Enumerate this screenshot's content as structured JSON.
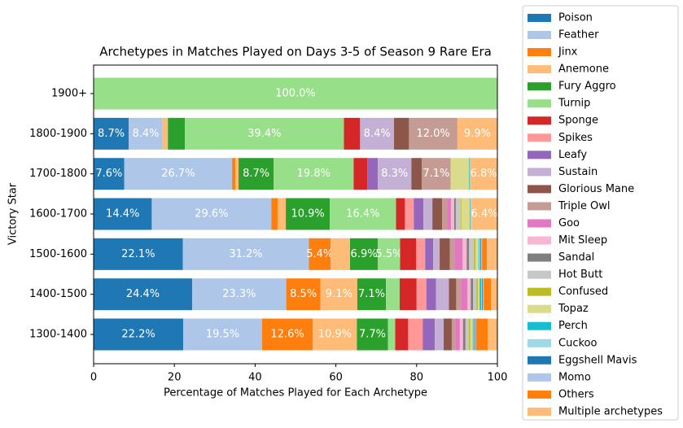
{
  "chart_data": {
    "type": "barh_stacked",
    "title": "Archetypes in Matches Played on Days 3-5 of Season 9 Rare Era",
    "xlabel": "Percentage of Matches Played for Each Archetype",
    "ylabel": "Victory Star",
    "categories": [
      "1300-1400",
      "1400-1500",
      "1500-1600",
      "1600-1700",
      "1700-1800",
      "1800-1900",
      "1900+"
    ],
    "xlim": [
      0,
      100
    ],
    "xticks": [
      0,
      20,
      40,
      60,
      80,
      100
    ],
    "series": [
      {
        "name": "Poison",
        "color": "#1f77b4",
        "values": [
          22.2,
          24.4,
          22.1,
          14.4,
          7.6,
          8.7,
          0
        ],
        "value_labels": [
          "22.2%",
          "24.4%",
          "22.1%",
          "14.4%",
          "7.6%",
          "8.7%",
          null
        ]
      },
      {
        "name": "Feather",
        "color": "#aec7e8",
        "values": [
          19.5,
          23.3,
          31.2,
          29.6,
          26.7,
          8.4,
          0
        ],
        "value_labels": [
          "19.5%",
          "23.3%",
          "31.2%",
          "29.6%",
          "26.7%",
          "8.4%",
          null
        ]
      },
      {
        "name": "Jinx",
        "color": "#ff7f0e",
        "values": [
          12.6,
          8.5,
          5.4,
          1.6,
          0.8,
          0,
          0
        ],
        "value_labels": [
          "12.6%",
          "8.5%",
          "5.4%",
          null,
          null,
          null,
          null
        ]
      },
      {
        "name": "Anemone",
        "color": "#ffbb78",
        "values": [
          10.9,
          9.1,
          4.8,
          2.0,
          0.8,
          1.3,
          0
        ],
        "value_labels": [
          "10.9%",
          "9.1%",
          null,
          null,
          null,
          null,
          null
        ]
      },
      {
        "name": "Fury Aggro",
        "color": "#2ca02c",
        "values": [
          7.7,
          7.1,
          6.9,
          10.9,
          8.7,
          4.2,
          0
        ],
        "value_labels": [
          "7.7%",
          "7.1%",
          "6.9%",
          "10.9%",
          "8.7%",
          null,
          null
        ]
      },
      {
        "name": "Turnip",
        "color": "#98df8a",
        "values": [
          1.8,
          3.4,
          5.5,
          16.4,
          19.8,
          39.4,
          100
        ],
        "value_labels": [
          null,
          null,
          "5.5%",
          "16.4%",
          "19.8%",
          "39.4%",
          "100.0%"
        ]
      },
      {
        "name": "Sponge",
        "color": "#d62728",
        "values": [
          3.2,
          4.2,
          4.0,
          2.2,
          3.4,
          4.0,
          0
        ]
      },
      {
        "name": "Spikes",
        "color": "#ff9896",
        "values": [
          3.6,
          2.4,
          2.2,
          2.2,
          0,
          0,
          0
        ]
      },
      {
        "name": "Leafy",
        "color": "#9467bd",
        "values": [
          3.0,
          2.4,
          2.0,
          2.4,
          2.6,
          0,
          0
        ]
      },
      {
        "name": "Sustain",
        "color": "#c5b0d5",
        "values": [
          2.2,
          3.2,
          1.6,
          2.2,
          8.3,
          8.4,
          0
        ],
        "value_labels": [
          null,
          null,
          null,
          null,
          "8.3%",
          "8.4%",
          null
        ]
      },
      {
        "name": "Glorious Mane",
        "color": "#8c564b",
        "values": [
          2.0,
          1.8,
          2.5,
          2.4,
          2.6,
          3.7,
          0
        ]
      },
      {
        "name": "Triple Owl",
        "color": "#c49c94",
        "values": [
          1.0,
          1.2,
          1.2,
          1.4,
          7.1,
          12.0,
          0
        ],
        "value_labels": [
          null,
          null,
          null,
          null,
          "7.1%",
          "12.0%",
          null
        ]
      },
      {
        "name": "Goo",
        "color": "#e377c2",
        "values": [
          1.0,
          1.6,
          2.0,
          0.8,
          0,
          0,
          0
        ]
      },
      {
        "name": "Mit Sleep",
        "color": "#f7b6d2",
        "values": [
          0.8,
          0.8,
          1.0,
          0.8,
          0,
          0,
          0
        ]
      },
      {
        "name": "Sandal",
        "color": "#7f7f7f",
        "values": [
          0.6,
          0.6,
          0.6,
          0.4,
          0,
          0,
          0
        ]
      },
      {
        "name": "Hot Butt",
        "color": "#c7c7c7",
        "values": [
          0.8,
          0.8,
          1.2,
          1.2,
          0,
          0,
          0
        ]
      },
      {
        "name": "Confused",
        "color": "#bcbd22",
        "values": [
          0.4,
          0.4,
          0.4,
          0.2,
          0,
          0,
          0
        ]
      },
      {
        "name": "Topaz",
        "color": "#dbdb8d",
        "values": [
          0.6,
          0.4,
          0.8,
          2.1,
          4.6,
          0,
          0
        ]
      },
      {
        "name": "Perch",
        "color": "#17becf",
        "values": [
          0.2,
          0.4,
          0.2,
          0.2,
          0.2,
          0,
          0
        ]
      },
      {
        "name": "Cuckoo",
        "color": "#9edae5",
        "values": [
          0.2,
          0.2,
          0.2,
          0.2,
          0,
          0,
          0
        ]
      },
      {
        "name": "Eggshell Mavis",
        "color": "#1f77b4",
        "values": [
          0.2,
          0.2,
          0.2,
          0,
          0,
          0,
          0
        ]
      },
      {
        "name": "Momo",
        "color": "#aec7e8",
        "values": [
          0.2,
          0.2,
          0.2,
          0,
          0,
          0,
          0
        ]
      },
      {
        "name": "Others",
        "color": "#ff7f0e",
        "values": [
          2.9,
          1.8,
          1.2,
          0,
          0,
          0,
          0
        ]
      },
      {
        "name": "Multiple archetypes",
        "color": "#ffbb78",
        "values": [
          2.4,
          1.6,
          2.6,
          6.4,
          6.8,
          9.9,
          0
        ],
        "value_labels": [
          null,
          null,
          null,
          "6.4%",
          "6.8%",
          "9.9%",
          null
        ]
      }
    ]
  }
}
